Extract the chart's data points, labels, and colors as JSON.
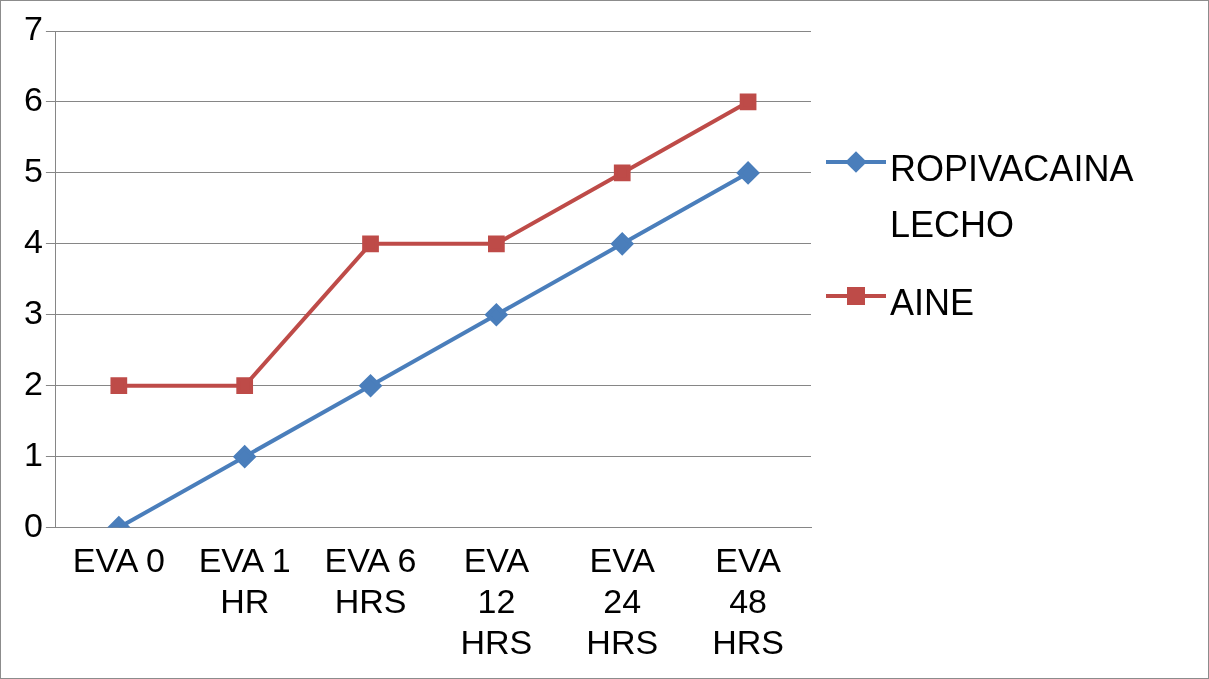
{
  "chart_data": {
    "type": "line",
    "categories": [
      "EVA 0",
      "EVA 1 HR",
      "EVA 6 HRS",
      "EVA 12 HRS",
      "EVA 24 HRS",
      "EVA 48 HRS"
    ],
    "series": [
      {
        "name": "ROPIVACAINA LECHO",
        "color": "#4a7ebb",
        "marker": "diamond",
        "values": [
          0,
          1,
          2,
          3,
          4,
          5
        ]
      },
      {
        "name": "AINE",
        "color": "#be4b48",
        "marker": "square",
        "values": [
          2,
          2,
          4,
          4,
          5,
          6
        ]
      }
    ],
    "ylim": [
      0,
      7
    ],
    "yticks": [
      0,
      1,
      2,
      3,
      4,
      5,
      6,
      7
    ],
    "grid": "y",
    "legend": "right"
  }
}
